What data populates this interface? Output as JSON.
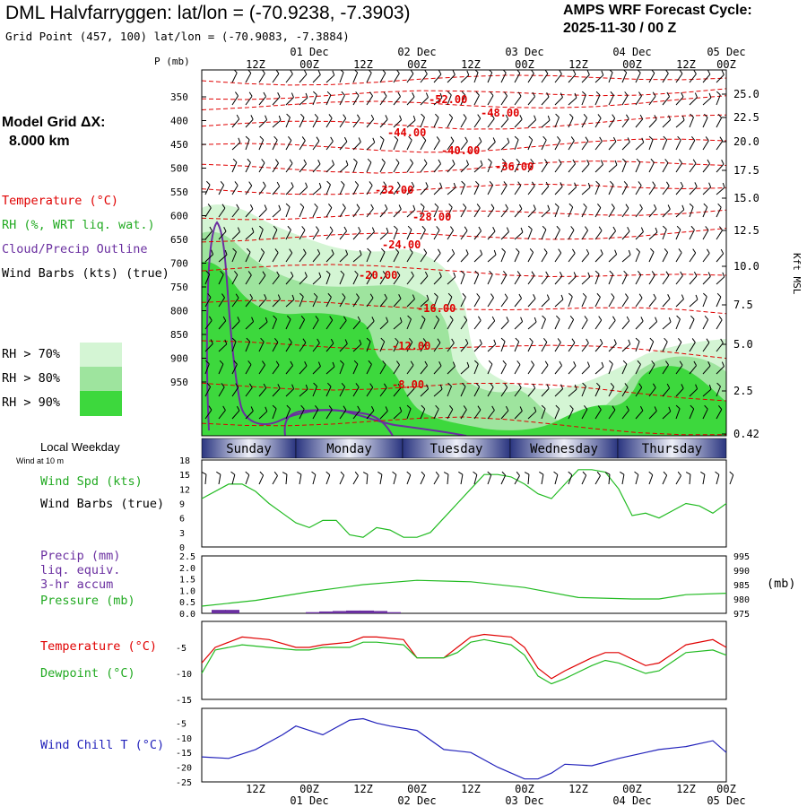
{
  "header": {
    "title": "DML Halvfarryggen:  lat/lon = (-70.9238, -7.3903)",
    "subtitle": "Grid Point (457, 100) lat/lon = (-70.9083, -7.3884)",
    "cycle_line1": "AMPS WRF Forecast Cycle:",
    "cycle_line2": "2025-11-30 / 00  Z"
  },
  "left_legend": {
    "model_grid_line1": "Model Grid ΔX:",
    "model_grid_line2": "8.000 km",
    "temperature": "Temperature (°C)",
    "rh": "RH (%, WRT liq. wat.)",
    "cloud": "Cloud/Precip Outline",
    "wind": "Wind Barbs (kts) (true)",
    "rh70": "RH > 70%",
    "rh80": "RH > 80%",
    "rh90": "RH > 90%",
    "local_weekday": "Local Weekday",
    "wind_at": "Wind at 10 m"
  },
  "colors": {
    "temperature": "#e00000",
    "rh70": "#d4f5d4",
    "rh80": "#9ee49e",
    "rh90": "#3dd83d",
    "cloud": "#6a2fa0",
    "wind_speed": "#22bb22",
    "pressure": "#22bb22",
    "precip": "#6a2fa0",
    "dewpoint": "#22bb22",
    "wind_chill": "#2222bb",
    "weekday_dark": "#2a3580",
    "weekday_light": "#eef0f8"
  },
  "time_axis": {
    "top_hours": [
      "12Z",
      "00Z",
      "12Z",
      "00Z",
      "12Z",
      "00Z",
      "12Z",
      "00Z",
      "12Z",
      "00Z"
    ],
    "top_dates": [
      "01 Dec",
      "02 Dec",
      "03 Dec",
      "04 Dec",
      "05 Dec"
    ],
    "bottom_hours": [
      "12Z",
      "00Z",
      "12Z",
      "00Z",
      "12Z",
      "00Z",
      "12Z",
      "00Z",
      "12Z",
      "00Z"
    ],
    "bottom_dates": [
      "01 Dec",
      "02 Dec",
      "03 Dec",
      "04 Dec",
      "05 Dec"
    ]
  },
  "weekdays": [
    "Sunday",
    "Monday",
    "Tuesday",
    "Wednesday",
    "Thursday"
  ],
  "chart_data": [
    {
      "type": "heatmap",
      "panel": "cross-section",
      "ylabel_left": "P (mb)",
      "ylabel_right": "Kft MSL",
      "pressure_ticks": [
        "350",
        "400",
        "450",
        "500",
        "550",
        "600",
        "650",
        "700",
        "750",
        "800",
        "850",
        "900",
        "950"
      ],
      "height_ticks": [
        "25.0",
        "22.5",
        "20.0",
        "17.5",
        "15.0",
        "12.5",
        "10.0",
        "7.5",
        "5.0",
        "2.5",
        "0.42"
      ],
      "temperature_contour_labels": [
        "-52.00",
        "-48.00",
        "-44.00",
        "-40.00",
        "-36.00",
        "-32.00",
        "-28.00",
        "-24.00",
        "-20.00",
        "-16.00",
        "-12.00",
        "-8.00"
      ]
    },
    {
      "type": "line",
      "panel": "wind",
      "ylabel": "Wind Spd (kts)",
      "ylabel2": "Wind Barbs (true)",
      "y_ticks": [
        "18",
        "15",
        "12",
        "9",
        "6",
        "3",
        "0"
      ],
      "ylim": [
        0,
        18
      ],
      "series": [
        {
          "name": "Wind Spd (kts)",
          "x": [
            0,
            6,
            9,
            12,
            15,
            18,
            21,
            24,
            27,
            30,
            33,
            36,
            39,
            42,
            45,
            48,
            51,
            54,
            57,
            60,
            63,
            66,
            69,
            72,
            75,
            78,
            81,
            84,
            87,
            90,
            93,
            96,
            99,
            102,
            105,
            108,
            111,
            114,
            117
          ],
          "values": [
            10,
            13,
            13,
            11.5,
            9,
            7,
            5,
            4,
            5.5,
            5.5,
            2.5,
            2,
            4,
            3.5,
            2,
            2,
            3,
            6,
            9,
            12,
            15,
            15,
            14.5,
            13,
            11,
            10,
            13,
            16,
            16,
            15.5,
            12,
            6.5,
            7,
            6,
            7.5,
            9,
            8.5,
            7,
            9
          ]
        }
      ]
    },
    {
      "type": "line",
      "panel": "precip-pressure",
      "ylabel_left": "Precip (mm)",
      "ylabel_left2": "liq. equiv.",
      "ylabel_left3": "3-hr accum",
      "ylabel_left4": "Pressure (mb)",
      "ylabel_right": "(mb)",
      "y_ticks_left": [
        "2.5",
        "2.0",
        "1.5",
        "1.0",
        "0.5",
        "0.0"
      ],
      "y_ticks_right": [
        "995",
        "990",
        "985",
        "980",
        "975"
      ],
      "ylim_left": [
        0,
        2.5
      ],
      "ylim_right": [
        975,
        995
      ],
      "series": [
        {
          "name": "Pressure (mb)",
          "x": [
            0,
            12,
            24,
            36,
            48,
            60,
            72,
            84,
            96,
            102,
            108,
            117
          ],
          "values": [
            977.5,
            979.5,
            982.5,
            985,
            986.5,
            986,
            984,
            980.5,
            980,
            980,
            981.5,
            982
          ]
        },
        {
          "name": "Precip (mm)",
          "x": [
            3,
            6,
            24,
            27,
            30,
            33,
            36,
            39,
            42
          ],
          "values": [
            0.15,
            0.15,
            0.05,
            0.08,
            0.1,
            0.12,
            0.12,
            0.1,
            0.05
          ]
        }
      ]
    },
    {
      "type": "line",
      "panel": "temperature-dewpoint",
      "ylabel": "Temperature (°C)",
      "ylabel2": "Dewpoint (°C)",
      "y_ticks": [
        "-5",
        "-10",
        "-15"
      ],
      "ylim": [
        -15,
        0
      ],
      "series": [
        {
          "name": "Temperature (°C)",
          "x": [
            0,
            3,
            9,
            15,
            21,
            24,
            27,
            33,
            36,
            39,
            45,
            48,
            54,
            57,
            60,
            63,
            69,
            72,
            75,
            78,
            81,
            87,
            90,
            93,
            99,
            102,
            108,
            114,
            117
          ],
          "values": [
            -8,
            -5,
            -3,
            -3.5,
            -5,
            -5,
            -4.5,
            -4,
            -3,
            -3,
            -3.5,
            -7,
            -7,
            -5,
            -3,
            -2.5,
            -3,
            -5,
            -9,
            -11,
            -9.5,
            -7,
            -6,
            -6,
            -8.5,
            -8,
            -4.5,
            -3.5,
            -5
          ]
        },
        {
          "name": "Dewpoint (°C)",
          "x": [
            0,
            3,
            9,
            15,
            21,
            24,
            27,
            33,
            36,
            39,
            45,
            48,
            54,
            57,
            60,
            63,
            69,
            72,
            75,
            78,
            81,
            87,
            90,
            93,
            99,
            102,
            108,
            114,
            117
          ],
          "values": [
            -10,
            -5.5,
            -4.5,
            -5,
            -5.5,
            -5.5,
            -5,
            -5,
            -4,
            -4,
            -4.5,
            -7,
            -7,
            -6,
            -4,
            -3.5,
            -4.5,
            -6.5,
            -10.5,
            -12,
            -11,
            -8.5,
            -7.5,
            -8,
            -10,
            -9.5,
            -6,
            -5.5,
            -6.5
          ]
        }
      ]
    },
    {
      "type": "line",
      "panel": "wind-chill",
      "ylabel": "Wind Chill T (°C)",
      "y_ticks": [
        "-5",
        "-10",
        "-15",
        "-20",
        "-25"
      ],
      "ylim": [
        -25,
        0
      ],
      "series": [
        {
          "name": "Wind Chill T (°C)",
          "x": [
            0,
            6,
            12,
            18,
            21,
            24,
            27,
            33,
            36,
            39,
            42,
            48,
            54,
            60,
            66,
            72,
            75,
            78,
            81,
            87,
            93,
            99,
            102,
            108,
            114,
            117
          ],
          "values": [
            -16.5,
            -17,
            -14,
            -9,
            -6,
            -7.5,
            -9,
            -4,
            -3.5,
            -5,
            -6,
            -7.5,
            -14,
            -15,
            -20,
            -24,
            -24,
            -22,
            -19,
            -19.5,
            -17,
            -15,
            -14,
            -13,
            -11,
            -15
          ]
        }
      ]
    }
  ]
}
